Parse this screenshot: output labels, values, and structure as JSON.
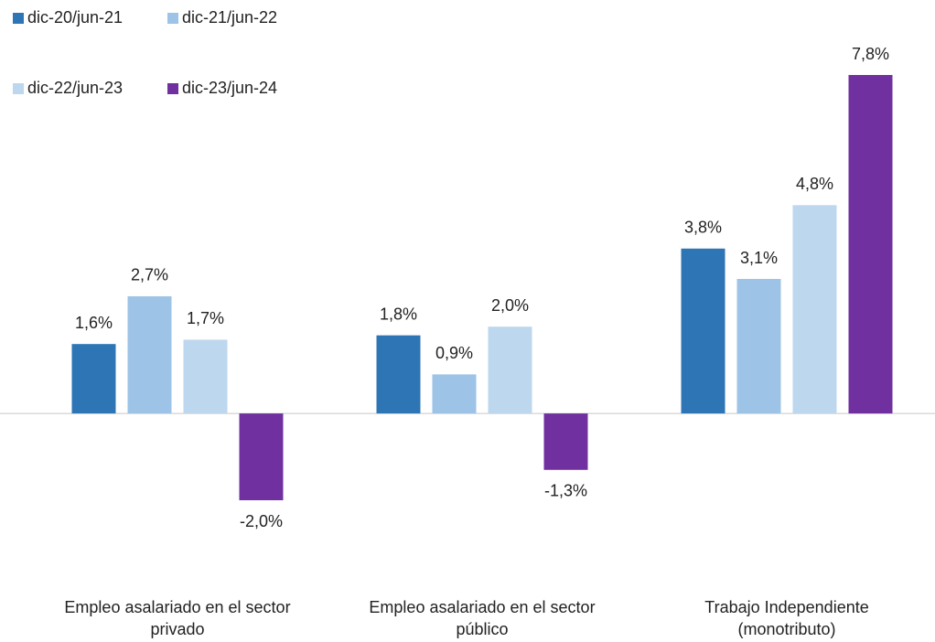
{
  "chart_data": {
    "type": "bar",
    "categories": [
      "Empleo asalariado en el sector\nprivado",
      "Empleo asalariado en el sector\npúblico",
      "Trabajo Independiente\n(monotributo)"
    ],
    "series": [
      {
        "name": "dic-20/jun-21",
        "color": "#2e75b6",
        "values": [
          1.6,
          1.8,
          3.8
        ],
        "value_labels": [
          "1,6%",
          "1,8%",
          "3,8%"
        ]
      },
      {
        "name": "dic-21/jun-22",
        "color": "#9dc3e6",
        "values": [
          2.7,
          0.9,
          3.1
        ],
        "value_labels": [
          "2,7%",
          "0,9%",
          "3,1%"
        ]
      },
      {
        "name": "dic-22/jun-23",
        "color": "#bdd7ee",
        "values": [
          1.7,
          2.0,
          4.8
        ],
        "value_labels": [
          "1,7%",
          "2,0%",
          "4,8%"
        ]
      },
      {
        "name": "dic-23/jun-24",
        "color": "#7030a0",
        "values": [
          -2.0,
          -1.3,
          7.8
        ],
        "value_labels": [
          "-2,0%",
          "-1,3%",
          "7,8%"
        ]
      }
    ]
  }
}
